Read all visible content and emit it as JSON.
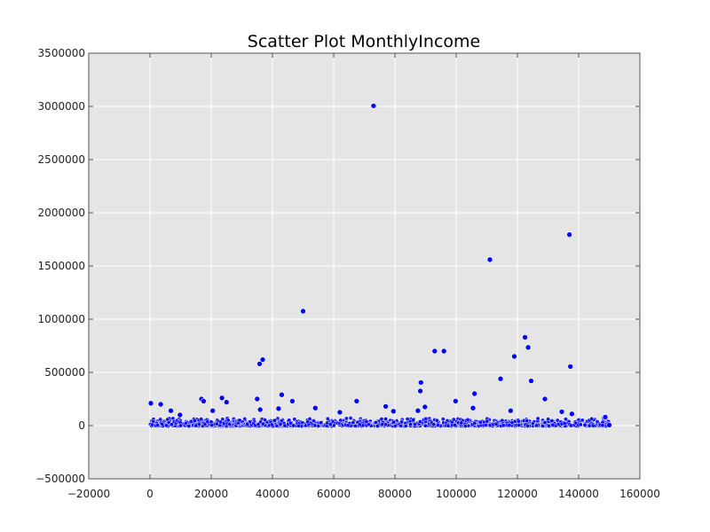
{
  "chart_data": {
    "type": "scatter",
    "title": "Scatter Plot MonthlyIncome",
    "xlabel": "",
    "ylabel": "",
    "xlim": [
      -20000,
      160000
    ],
    "ylim": [
      -500000,
      3500000
    ],
    "x_ticks": [
      -20000,
      0,
      20000,
      40000,
      60000,
      80000,
      100000,
      120000,
      140000,
      160000
    ],
    "y_ticks": [
      -500000,
      0,
      500000,
      1000000,
      1500000,
      2000000,
      2500000,
      3000000,
      3500000
    ],
    "grid": true,
    "background_color": "#e5e5e5",
    "point_color": "#0000ff",
    "series": [
      {
        "points": [
          [
            300,
            210000
          ],
          [
            3500,
            200000
          ],
          [
            6800,
            140000
          ],
          [
            9800,
            100000
          ],
          [
            16800,
            250000
          ],
          [
            17500,
            230000
          ],
          [
            20500,
            140000
          ],
          [
            23500,
            260000
          ],
          [
            25000,
            220000
          ],
          [
            35000,
            250000
          ],
          [
            35800,
            580000
          ],
          [
            36800,
            620000
          ],
          [
            36000,
            150000
          ],
          [
            42000,
            160000
          ],
          [
            43000,
            290000
          ],
          [
            46500,
            230000
          ],
          [
            50000,
            1075000
          ],
          [
            54000,
            165000
          ],
          [
            62000,
            125000
          ],
          [
            67500,
            230000
          ],
          [
            73000,
            3005000
          ],
          [
            77000,
            180000
          ],
          [
            79500,
            135000
          ],
          [
            87500,
            140000
          ],
          [
            88300,
            325000
          ],
          [
            88500,
            405000
          ],
          [
            89800,
            175000
          ],
          [
            93000,
            700000
          ],
          [
            96000,
            700000
          ],
          [
            99800,
            230000
          ],
          [
            105500,
            165000
          ],
          [
            106000,
            300000
          ],
          [
            111000,
            1560000
          ],
          [
            114500,
            440000
          ],
          [
            117800,
            140000
          ],
          [
            119000,
            650000
          ],
          [
            122500,
            830000
          ],
          [
            123500,
            735000
          ],
          [
            124500,
            420000
          ],
          [
            129000,
            250000
          ],
          [
            134500,
            130000
          ],
          [
            137000,
            1795000
          ],
          [
            137300,
            555000
          ],
          [
            137800,
            110000
          ],
          [
            148700,
            80000
          ],
          [
            150000,
            5000
          ]
        ]
      }
    ]
  }
}
